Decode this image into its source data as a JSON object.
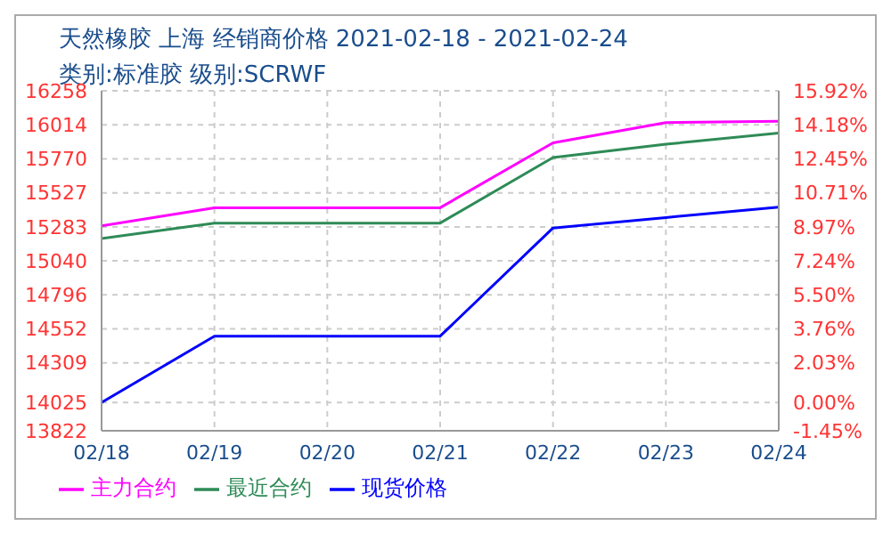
{
  "chart_data": {
    "type": "line",
    "title": "天然橡胶 上海 经销商价格 2021-02-18 - 2021-02-24",
    "subtitle": "类别:标准胶 级别:SCRWF",
    "categories": [
      "02/18",
      "02/19",
      "02/20",
      "02/21",
      "02/22",
      "02/23",
      "02/24"
    ],
    "series": [
      {
        "name": "现货价格",
        "color": "#0000ff",
        "values": [
          14025,
          14500,
          14500,
          14500,
          15275,
          15350,
          15425
        ]
      },
      {
        "name": "主力合约",
        "color": "#ff00ff",
        "values": [
          15290,
          15420,
          15420,
          15420,
          15885,
          16030,
          16040
        ]
      },
      {
        "name": "最近合约",
        "color": "#2e8b57",
        "values": [
          15200,
          15310,
          15310,
          15310,
          15780,
          15875,
          15955
        ]
      }
    ],
    "ylim": [
      13822,
      16258
    ],
    "yticks": [
      13822,
      14025,
      14309,
      14552,
      14796,
      15040,
      15283,
      15527,
      15770,
      16014,
      16258
    ],
    "y2lim": [
      -1.45,
      15.92
    ],
    "y2ticks": [
      {
        "value": -1.45,
        "label": "-1.45%"
      },
      {
        "value": 0,
        "label": "0.00%"
      },
      {
        "value": 2.03,
        "label": "2.03%"
      },
      {
        "value": 3.76,
        "label": "3.76%"
      },
      {
        "value": 5.5,
        "label": "5.50%"
      },
      {
        "value": 7.24,
        "label": "7.24%"
      },
      {
        "value": 8.97,
        "label": "8.97%"
      },
      {
        "value": 10.71,
        "label": "10.71%"
      },
      {
        "value": 12.45,
        "label": "12.45%"
      },
      {
        "value": 14.18,
        "label": "14.18%"
      },
      {
        "value": 15.92,
        "label": "15.92%"
      }
    ],
    "grid": true,
    "legend": "bottom",
    "marker": "none",
    "line_style": "solid"
  }
}
